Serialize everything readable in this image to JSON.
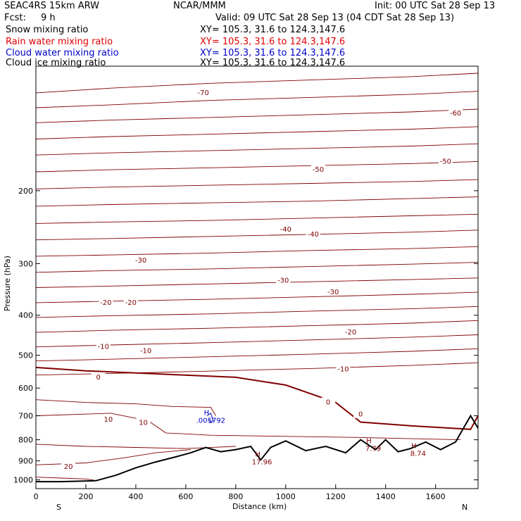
{
  "header": {
    "model": "SEAC4RS 15km ARW",
    "org": "NCAR/MMM",
    "init": "Init: 00 UTC Sat 28 Sep 13",
    "fcst_label": "Fcst:",
    "fcst_value": "9 h",
    "valid": "Valid: 09 UTC Sat 28 Sep 13 (04 CDT Sat 28 Sep 13)"
  },
  "fields": [
    {
      "name": "Snow mixing ratio",
      "xy": "XY= 105.3, 31.6 to 124.3,147.6",
      "color": "#000000"
    },
    {
      "name": "Rain water mixing ratio",
      "xy": "XY= 105.3, 31.6 to 124.3,147.6",
      "color": "#e00000"
    },
    {
      "name": "Cloud water mixing ratio",
      "xy": "XY= 105.3, 31.6 to 124.3,147.6",
      "color": "#0000c8"
    },
    {
      "name": "Cloud ice mixing ratio",
      "xy": "XY= 105.3, 31.6 to 124.3,147.6",
      "color": "#000000"
    }
  ],
  "chart_data": {
    "type": "cross-section contour",
    "xlabel": "Distance (km)",
    "ylabel": "Pressure (hPa)",
    "x_ticks": [
      0,
      200,
      400,
      600,
      800,
      1000,
      1200,
      1400,
      1600
    ],
    "y_ticks": [
      200,
      300,
      400,
      500,
      600,
      700,
      800,
      900,
      1000
    ],
    "xlim": [
      0,
      1770
    ],
    "ylim": [
      1050,
      100
    ],
    "y_scale": "log",
    "endpoints": {
      "left": "S",
      "right": "N"
    },
    "temperature_isotherms_C": [
      {
        "T": -70,
        "x": [
          0,
          300,
          700,
          1100,
          1500,
          1770
        ],
        "p": [
          116,
          113,
          110,
          108,
          106,
          104
        ]
      },
      {
        "T": -60,
        "x": [
          0,
          300,
          700,
          1100,
          1500,
          1770
        ],
        "p": [
          126,
          124,
          121,
          119,
          117,
          115
        ]
      },
      {
        "T": -60,
        "x": [
          0,
          300,
          700,
          1100,
          1500,
          1770
        ],
        "p": [
          137,
          135,
          133,
          131,
          129,
          127
        ]
      },
      {
        "T": -60,
        "x": [
          0,
          300,
          700,
          1100,
          1500,
          1770
        ],
        "p": [
          150,
          148,
          146,
          144,
          142,
          140
        ]
      },
      {
        "T": -50,
        "x": [
          0,
          300,
          700,
          1100,
          1500,
          1770
        ],
        "p": [
          164,
          162,
          160,
          158,
          156,
          154
        ]
      },
      {
        "T": -50,
        "x": [
          0,
          300,
          700,
          1100,
          1500,
          1770
        ],
        "p": [
          180,
          178,
          176,
          174,
          172,
          170
        ]
      },
      {
        "T": -50,
        "x": [
          0,
          300,
          700,
          1100,
          1500,
          1770
        ],
        "p": [
          198,
          196,
          194,
          192,
          190,
          188
        ]
      },
      {
        "T": -40,
        "x": [
          0,
          300,
          700,
          1100,
          1500,
          1770
        ],
        "p": [
          218,
          216,
          214,
          212,
          209,
          207
        ]
      },
      {
        "T": -40,
        "x": [
          0,
          300,
          700,
          1100,
          1500,
          1770
        ],
        "p": [
          240,
          238,
          236,
          233,
          230,
          228
        ]
      },
      {
        "T": -40,
        "x": [
          0,
          300,
          700,
          1100,
          1500,
          1770
        ],
        "p": [
          263,
          261,
          258,
          255,
          252,
          249
        ]
      },
      {
        "T": -30,
        "x": [
          0,
          300,
          700,
          1100,
          1500,
          1770
        ],
        "p": [
          288,
          286,
          283,
          279,
          276,
          273
        ]
      },
      {
        "T": -30,
        "x": [
          0,
          300,
          700,
          1100,
          1500,
          1770
        ],
        "p": [
          315,
          312,
          309,
          305,
          301,
          298
        ]
      },
      {
        "T": -30,
        "x": [
          0,
          300,
          700,
          1100,
          1500,
          1770
        ],
        "p": [
          343,
          340,
          336,
          332,
          328,
          325
        ]
      },
      {
        "T": -20,
        "x": [
          0,
          300,
          700,
          1100,
          1500,
          1770
        ],
        "p": [
          373,
          370,
          366,
          361,
          356,
          352
        ]
      },
      {
        "T": -20,
        "x": [
          0,
          300,
          700,
          1100,
          1500,
          1770
        ],
        "p": [
          405,
          401,
          397,
          391,
          386,
          381
        ]
      },
      {
        "T": -20,
        "x": [
          0,
          300,
          700,
          1100,
          1500,
          1770
        ],
        "p": [
          440,
          435,
          430,
          424,
          418,
          412
        ]
      },
      {
        "T": -10,
        "x": [
          0,
          300,
          700,
          1100,
          1500,
          1770
        ],
        "p": [
          477,
          472,
          466,
          459,
          452,
          446
        ]
      },
      {
        "T": -10,
        "x": [
          0,
          300,
          700,
          1100,
          1500,
          1770
        ],
        "p": [
          516,
          511,
          504,
          497,
          489,
          482
        ]
      },
      {
        "T": -10,
        "x": [
          0,
          300,
          700,
          1100,
          1500,
          1770
        ],
        "p": [
          558,
          553,
          546,
          538,
          529,
          521
        ]
      },
      {
        "T": 0,
        "x": [
          0,
          200,
          500,
          800,
          1000,
          1200,
          1300,
          1500,
          1740,
          1770
        ],
        "p": [
          535,
          545,
          555,
          565,
          590,
          650,
          725,
          740,
          755,
          700
        ]
      },
      {
        "T": 10,
        "x": [
          0,
          200,
          400,
          550,
          700,
          720
        ],
        "p": [
          640,
          650,
          655,
          665,
          668,
          700
        ]
      },
      {
        "T": 10,
        "x": [
          0,
          300,
          450,
          520,
          700,
          1000,
          1300,
          1700
        ],
        "p": [
          700,
          690,
          720,
          770,
          780,
          785,
          790,
          800
        ]
      },
      {
        "T": 10,
        "x": [
          0,
          200,
          400,
          600,
          800
        ],
        "p": [
          820,
          830,
          835,
          840,
          830
        ]
      },
      {
        "T": 20,
        "x": [
          0,
          200,
          350,
          480,
          620
        ],
        "p": [
          920,
          910,
          885,
          860,
          845
        ]
      },
      {
        "T": 20,
        "x": [
          0,
          100,
          200,
          230
        ],
        "p": [
          985,
          990,
          995,
          1000
        ]
      }
    ],
    "terrain": {
      "x": [
        0,
        100,
        240,
        320,
        400,
        480,
        560,
        620,
        680,
        740,
        800,
        860,
        900,
        940,
        1000,
        1080,
        1160,
        1240,
        1300,
        1360,
        1400,
        1450,
        1500,
        1560,
        1620,
        1680,
        1740,
        1770
      ],
      "p": [
        1010,
        1010,
        1005,
        975,
        935,
        905,
        880,
        860,
        835,
        855,
        845,
        830,
        895,
        835,
        805,
        850,
        830,
        860,
        800,
        845,
        800,
        855,
        840,
        810,
        845,
        810,
        700,
        750
      ]
    },
    "labels": [
      {
        "text": "-70",
        "x": 670,
        "p": 116
      },
      {
        "text": "-60",
        "x": 1680,
        "p": 130
      },
      {
        "text": "-50",
        "x": 1130,
        "p": 178
      },
      {
        "text": "-50",
        "x": 1640,
        "p": 170
      },
      {
        "text": "-40",
        "x": 1000,
        "p": 248
      },
      {
        "text": "-40",
        "x": 1110,
        "p": 255
      },
      {
        "text": "-30",
        "x": 420,
        "p": 295
      },
      {
        "text": "-30",
        "x": 990,
        "p": 330
      },
      {
        "text": "-30",
        "x": 1190,
        "p": 352
      },
      {
        "text": "-20",
        "x": 280,
        "p": 373
      },
      {
        "text": "-20",
        "x": 380,
        "p": 373
      },
      {
        "text": "-20",
        "x": 1260,
        "p": 440
      },
      {
        "text": "-10",
        "x": 270,
        "p": 477
      },
      {
        "text": "-10",
        "x": 440,
        "p": 488
      },
      {
        "text": "-10",
        "x": 1230,
        "p": 540
      },
      {
        "text": "0",
        "x": 250,
        "p": 565
      },
      {
        "text": "0",
        "x": 1170,
        "p": 650
      },
      {
        "text": "0",
        "x": 1300,
        "p": 695
      },
      {
        "text": "10",
        "x": 290,
        "p": 715
      },
      {
        "text": "10",
        "x": 430,
        "p": 728
      },
      {
        "text": "20",
        "x": 130,
        "p": 930
      }
    ],
    "extrema": [
      {
        "text": "H",
        "value": "17.96",
        "x": 905,
        "p": 900,
        "color": "#800000"
      },
      {
        "text": "H",
        "value": "7.79",
        "x": 1350,
        "p": 835,
        "color": "#800000"
      },
      {
        "text": "H",
        "value": "8.74",
        "x": 1530,
        "p": 858,
        "color": "#800000"
      },
      {
        "text": "H",
        "value": ".005792",
        "x": 700,
        "p": 714,
        "color": "#0000c8"
      }
    ],
    "cloud_water_contour": {
      "x": [
        685,
        700,
        705,
        710,
        700,
        690
      ],
      "p": [
        700,
        690,
        705,
        720,
        728,
        715
      ],
      "color": "#0000c8"
    }
  }
}
